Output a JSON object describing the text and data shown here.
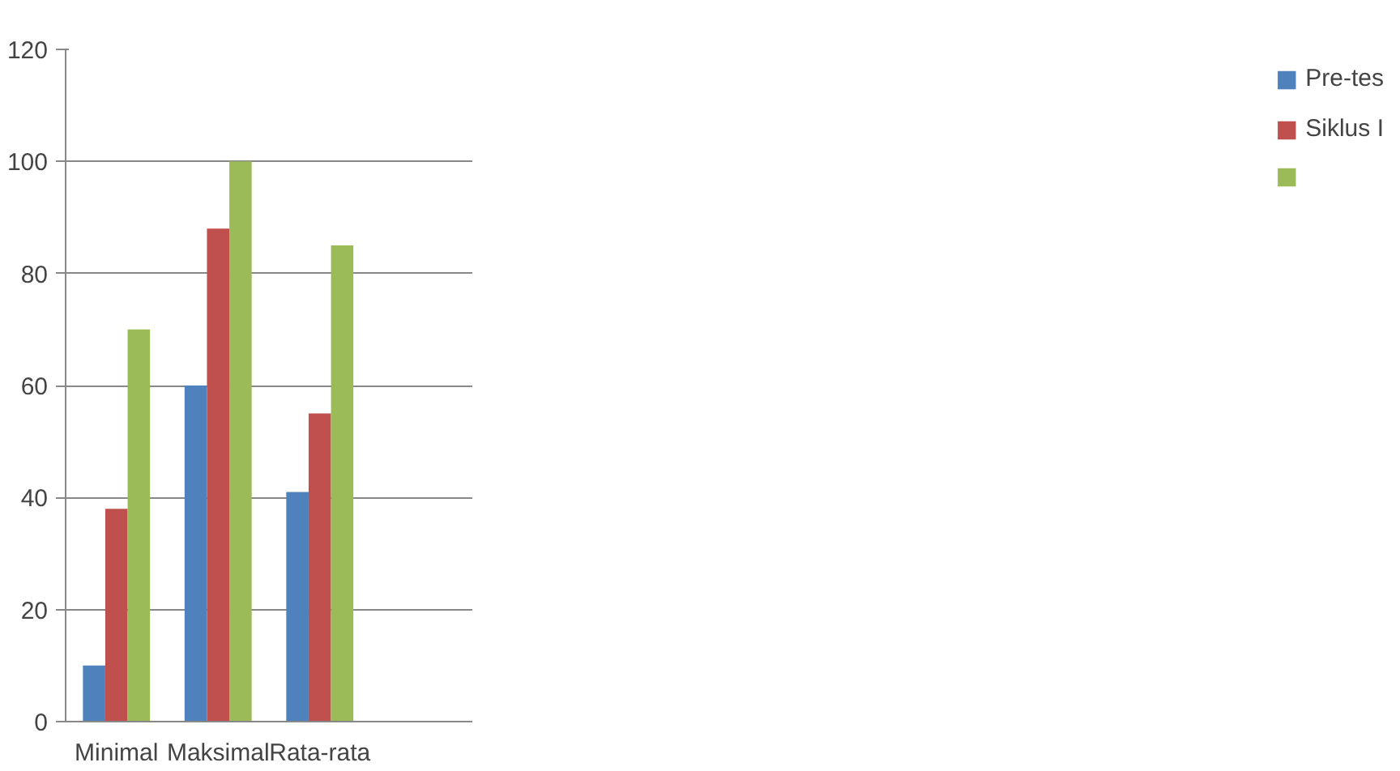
{
  "chart_data": {
    "type": "bar",
    "categories": [
      "Minimal",
      "Maksimal",
      "Rata-rata",
      null
    ],
    "series": [
      {
        "name": "Pre-tes",
        "color": "#4f81bd",
        "values": [
          10,
          60,
          41,
          null
        ]
      },
      {
        "name": "Siklus I",
        "color": "#c0504d",
        "values": [
          38,
          88,
          55,
          null
        ]
      },
      {
        "color": "#9bbb59",
        "values": [
          70,
          100,
          85,
          null
        ]
      }
    ],
    "ylim": [
      0,
      120
    ],
    "yticks": [
      0,
      20,
      40,
      60,
      80,
      100,
      120
    ],
    "grid": "y",
    "legend": "right"
  }
}
